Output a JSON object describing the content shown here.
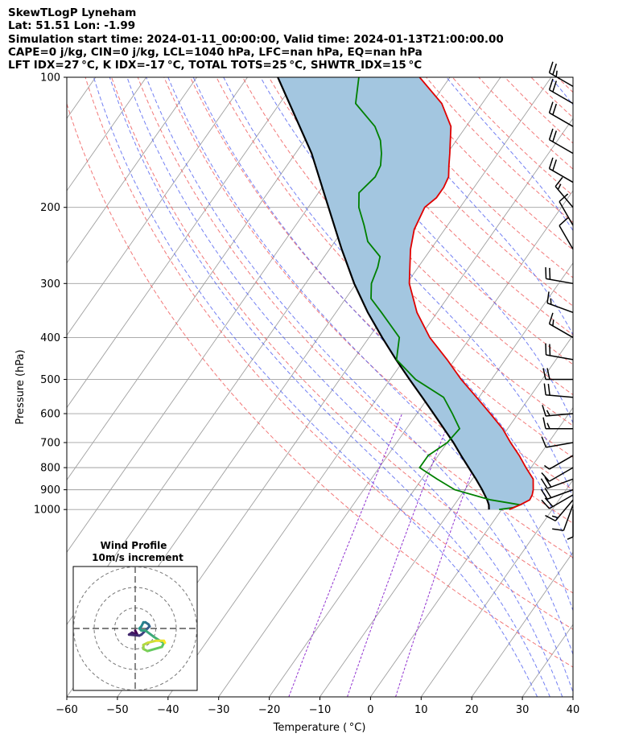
{
  "header": {
    "line1": "SkewTLogP Lyneham",
    "line2": "Lat: 51.51   Lon: -1.99",
    "line3": "Simulation start time: 2024-01-11_00:00:00, Valid time: 2024-01-13T21:00:00.00",
    "line4": "CAPE=0 j/kg, CIN=0 j/kg, LCL=1040 hPa, LFC=nan hPa, EQ=nan hPa",
    "line5": "LFT IDX=27 °C, K IDX=-17 °C, TOTAL TOTS=25 °C, SHWTR_IDX=15 °C"
  },
  "colors": {
    "temperature": "#e00000",
    "dewpoint": "#008000",
    "parcel": "#000000",
    "fill": "#a3c6e0",
    "dry_adiabat": "#f06060",
    "moist_adiabat": "#5060f0",
    "mixing_ratio": "#9030d0",
    "isotherm": "#a0a0a0"
  },
  "chart_data": {
    "type": "line",
    "title": "",
    "xlabel": "Temperature ( °C)",
    "ylabel": "Pressure (hPa)",
    "xlim": [
      -60,
      40
    ],
    "ylim": [
      1050,
      100
    ],
    "y_scale": "log",
    "skew": "skew-T log-P",
    "grid": true,
    "x_ticks": [
      "−60",
      "−50",
      "−40",
      "−30",
      "−20",
      "−10",
      "0",
      "10",
      "20",
      "30",
      "40"
    ],
    "y_ticks": [
      "100",
      "200",
      "300",
      "400",
      "500",
      "600",
      "700",
      "800",
      "900",
      "1000"
    ],
    "series": [
      {
        "key": "temperature",
        "points": [
          [
            1000,
            1.5
          ],
          [
            975,
            3.0
          ],
          [
            950,
            4.2
          ],
          [
            925,
            4.0
          ],
          [
            900,
            3.5
          ],
          [
            850,
            2.0
          ],
          [
            800,
            -1.0
          ],
          [
            750,
            -4.0
          ],
          [
            700,
            -7.5
          ],
          [
            650,
            -11.0
          ],
          [
            600,
            -15.5
          ],
          [
            550,
            -20.5
          ],
          [
            500,
            -26.0
          ],
          [
            450,
            -31.5
          ],
          [
            400,
            -38.0
          ],
          [
            350,
            -44.0
          ],
          [
            300,
            -49.5
          ],
          [
            250,
            -54.0
          ],
          [
            225,
            -56.0
          ],
          [
            200,
            -57.0
          ],
          [
            190,
            -56.0
          ],
          [
            180,
            -56.0
          ],
          [
            170,
            -56.5
          ],
          [
            160,
            -58.0
          ],
          [
            150,
            -59.5
          ],
          [
            130,
            -63.0
          ],
          [
            115,
            -68.0
          ],
          [
            100,
            -76.0
          ]
        ]
      },
      {
        "key": "dewpoint",
        "points": [
          [
            1000,
            -0.5
          ],
          [
            990,
            2.0
          ],
          [
            975,
            3.0
          ],
          [
            950,
            -3.5
          ],
          [
            900,
            -12.0
          ],
          [
            850,
            -17.0
          ],
          [
            800,
            -22.0
          ],
          [
            750,
            -22.0
          ],
          [
            700,
            -20.0
          ],
          [
            650,
            -19.5
          ],
          [
            600,
            -23.0
          ],
          [
            550,
            -27.0
          ],
          [
            500,
            -35.0
          ],
          [
            450,
            -41.5
          ],
          [
            400,
            -44.0
          ],
          [
            350,
            -51.0
          ],
          [
            325,
            -55.0
          ],
          [
            300,
            -57.0
          ],
          [
            275,
            -58.0
          ],
          [
            260,
            -59.0
          ],
          [
            240,
            -63.5
          ],
          [
            220,
            -66.5
          ],
          [
            200,
            -70.0
          ],
          [
            185,
            -72.0
          ],
          [
            170,
            -71.0
          ],
          [
            160,
            -71.5
          ],
          [
            150,
            -73.0
          ],
          [
            140,
            -75.0
          ],
          [
            130,
            -78.0
          ],
          [
            115,
            -85.0
          ],
          [
            100,
            -88.0
          ]
        ]
      },
      {
        "key": "parcel",
        "points": [
          [
            1000,
            -2.5
          ],
          [
            975,
            -3.2
          ],
          [
            950,
            -4.2
          ],
          [
            900,
            -6.6
          ],
          [
            850,
            -9.3
          ],
          [
            800,
            -12.3
          ],
          [
            750,
            -15.5
          ],
          [
            700,
            -18.8
          ],
          [
            650,
            -22.6
          ],
          [
            600,
            -26.7
          ],
          [
            550,
            -31.2
          ],
          [
            500,
            -36.2
          ],
          [
            450,
            -41.6
          ],
          [
            400,
            -47.4
          ],
          [
            350,
            -53.7
          ],
          [
            300,
            -60.4
          ],
          [
            250,
            -67.6
          ],
          [
            200,
            -76.0
          ],
          [
            150,
            -86.8
          ],
          [
            100,
            -104.0
          ]
        ]
      }
    ],
    "wind_barbs": [
      {
        "p": 1000,
        "spd": 5,
        "dir": 180
      },
      {
        "p": 975,
        "spd": 10,
        "dir": 200
      },
      {
        "p": 950,
        "spd": 15,
        "dir": 220
      },
      {
        "p": 925,
        "spd": 20,
        "dir": 240
      },
      {
        "p": 900,
        "spd": 20,
        "dir": 250
      },
      {
        "p": 850,
        "spd": 20,
        "dir": 250
      },
      {
        "p": 800,
        "spd": 10,
        "dir": 240
      },
      {
        "p": 750,
        "spd": 5,
        "dir": 240
      },
      {
        "p": 700,
        "spd": 10,
        "dir": 260
      },
      {
        "p": 650,
        "spd": 15,
        "dir": 270
      },
      {
        "p": 600,
        "spd": 15,
        "dir": 265
      },
      {
        "p": 550,
        "spd": 20,
        "dir": 275
      },
      {
        "p": 500,
        "spd": 20,
        "dir": 270
      },
      {
        "p": 450,
        "spd": 20,
        "dir": 280
      },
      {
        "p": 400,
        "spd": 15,
        "dir": 300
      },
      {
        "p": 350,
        "spd": 15,
        "dir": 290
      },
      {
        "p": 300,
        "spd": 20,
        "dir": 280
      },
      {
        "p": 250,
        "spd": 10,
        "dir": 330
      },
      {
        "p": 220,
        "spd": 10,
        "dir": 330
      },
      {
        "p": 200,
        "spd": 15,
        "dir": 320
      },
      {
        "p": 175,
        "spd": 20,
        "dir": 300
      },
      {
        "p": 150,
        "spd": 20,
        "dir": 300
      },
      {
        "p": 130,
        "spd": 20,
        "dir": 300
      },
      {
        "p": 115,
        "spd": 20,
        "dir": 300
      },
      {
        "p": 105,
        "spd": 25,
        "dir": 300
      }
    ],
    "inset": {
      "title": "Wind Profile",
      "subtitle": "10m/s increment",
      "ring_step": 10,
      "rings": 3,
      "hodograph": [
        [
          0,
          -1
        ],
        [
          1,
          -3
        ],
        [
          -1.5,
          -2
        ],
        [
          -3,
          -3
        ],
        [
          2,
          -3.5
        ],
        [
          3,
          -3
        ],
        [
          5,
          -1
        ],
        [
          6,
          0
        ],
        [
          7,
          1
        ],
        [
          6.5,
          2
        ],
        [
          5,
          3
        ],
        [
          4,
          3
        ],
        [
          3,
          1
        ],
        [
          2,
          0
        ],
        [
          3,
          -1
        ],
        [
          5,
          -1
        ],
        [
          9,
          -4
        ],
        [
          12,
          -6
        ],
        [
          14,
          -7
        ],
        [
          13,
          -9
        ],
        [
          6,
          -11
        ],
        [
          4,
          -10
        ],
        [
          4,
          -8
        ],
        [
          6,
          -7
        ],
        [
          10,
          -6
        ],
        [
          14,
          -6
        ],
        [
          14.5,
          -7
        ]
      ]
    }
  }
}
